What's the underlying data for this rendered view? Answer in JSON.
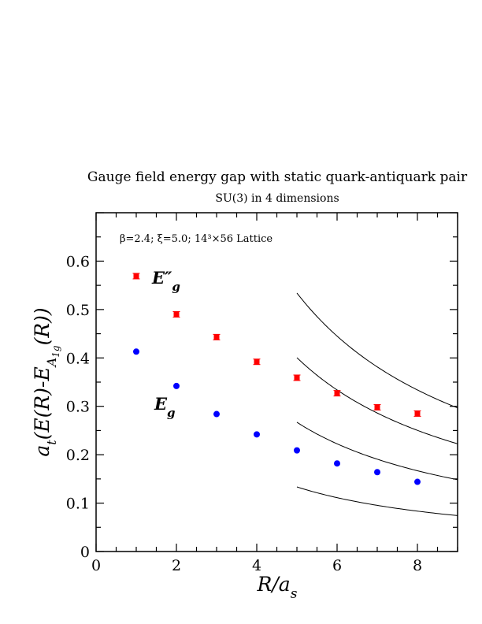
{
  "chart_data": {
    "type": "scatter",
    "title": "Gauge field energy gap with static quark-antiquark pair",
    "subtitle": "SU(3) in 4 dimensions",
    "annotation": "β=2.4;  ξ=5.0;  14³×56 Lattice",
    "xlabel": "R/a_s",
    "ylabel": "a_t(E(R)-E_A1g(R))",
    "xlim": [
      0,
      9
    ],
    "ylim": [
      0,
      0.7
    ],
    "xticks": [
      0,
      2,
      4,
      6,
      8
    ],
    "yticks": [
      0,
      0.1,
      0.2,
      0.3,
      0.4,
      0.5,
      0.6
    ],
    "grid": false,
    "colors": {
      "Eg_doubleprime": "#ff0000",
      "Eg": "#0000ff",
      "curves": "#000000"
    },
    "series": [
      {
        "name": "E″g",
        "marker": "square",
        "color": "#ff0000",
        "x": [
          1,
          2,
          3,
          4,
          5,
          6,
          7,
          8
        ],
        "y": [
          0.569,
          0.49,
          0.443,
          0.392,
          0.359,
          0.327,
          0.298,
          0.285
        ]
      },
      {
        "name": "Eg",
        "marker": "circle",
        "color": "#0000ff",
        "x": [
          1,
          2,
          3,
          4,
          5,
          6,
          7,
          8
        ],
        "y": [
          0.413,
          0.342,
          0.284,
          0.242,
          0.209,
          0.182,
          0.164,
          0.144
        ]
      }
    ],
    "curves": [
      {
        "n": 4,
        "x_range": [
          5,
          9
        ]
      },
      {
        "n": 3,
        "x_range": [
          5,
          9
        ]
      },
      {
        "n": 2,
        "x_range": [
          5,
          9
        ]
      },
      {
        "n": 1,
        "x_range": [
          5,
          9
        ]
      }
    ],
    "curve_form": "y = n*pi/x * 0.2125"
  }
}
